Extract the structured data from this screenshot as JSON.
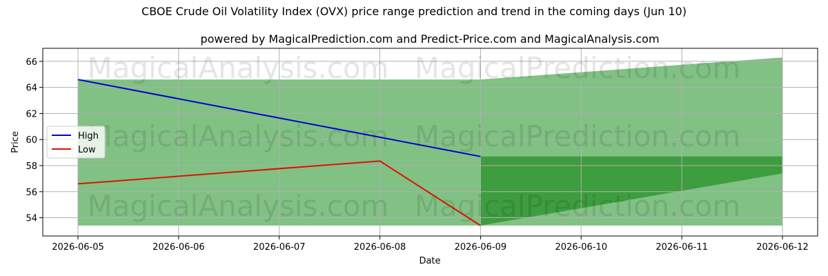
{
  "chart_data": {
    "type": "line",
    "title": "CBOE Crude Oil Volatility Index (OVX) price range prediction and trend in the coming days (Jun 10)",
    "subtitle": "powered by MagicalPrediction.com and Predict-Price.com and MagicalAnalysis.com",
    "xlabel": "Date",
    "ylabel": "Price",
    "x": [
      "2026-06-05",
      "2026-06-06",
      "2026-06-07",
      "2026-06-08",
      "2026-06-09",
      "2026-06-10",
      "2026-06-11",
      "2026-06-12"
    ],
    "xlim": [
      "2026-06-05",
      "2026-06-12"
    ],
    "ylim": [
      52.6,
      67.0
    ],
    "yticks": [
      54,
      56,
      58,
      60,
      62,
      64,
      66
    ],
    "grid": true,
    "legend_position": "center-left",
    "series": [
      {
        "name": "High",
        "color": "#0000cc",
        "points": [
          [
            "2026-06-05",
            64.6
          ],
          [
            "2026-06-09",
            58.7
          ]
        ]
      },
      {
        "name": "Low",
        "color": "#dd1100",
        "points": [
          [
            "2026-06-05",
            56.6
          ],
          [
            "2026-06-08",
            58.35
          ],
          [
            "2026-06-09",
            53.4
          ]
        ]
      }
    ],
    "bands": [
      {
        "color": "#81c184",
        "upper": [
          [
            "2026-06-05",
            64.6
          ],
          [
            "2026-06-09",
            64.6
          ],
          [
            "2026-06-12",
            66.3
          ]
        ],
        "lower": [
          [
            "2026-06-05",
            53.4
          ],
          [
            "2026-06-12",
            53.4
          ]
        ]
      },
      {
        "color": "#3d9d3f",
        "upper": [
          [
            "2026-06-09",
            58.7
          ],
          [
            "2026-06-12",
            58.7
          ]
        ],
        "lower": [
          [
            "2026-06-09",
            53.4
          ],
          [
            "2026-06-12",
            57.4
          ]
        ]
      }
    ],
    "watermarks": [
      "MagicalAnalysis.com",
      "MagicalPrediction.com",
      "MagicalAnalysis.com",
      "MagicalPrediction.com",
      "MagicalAnalysis.com",
      "MagicalPrediction.com"
    ]
  }
}
